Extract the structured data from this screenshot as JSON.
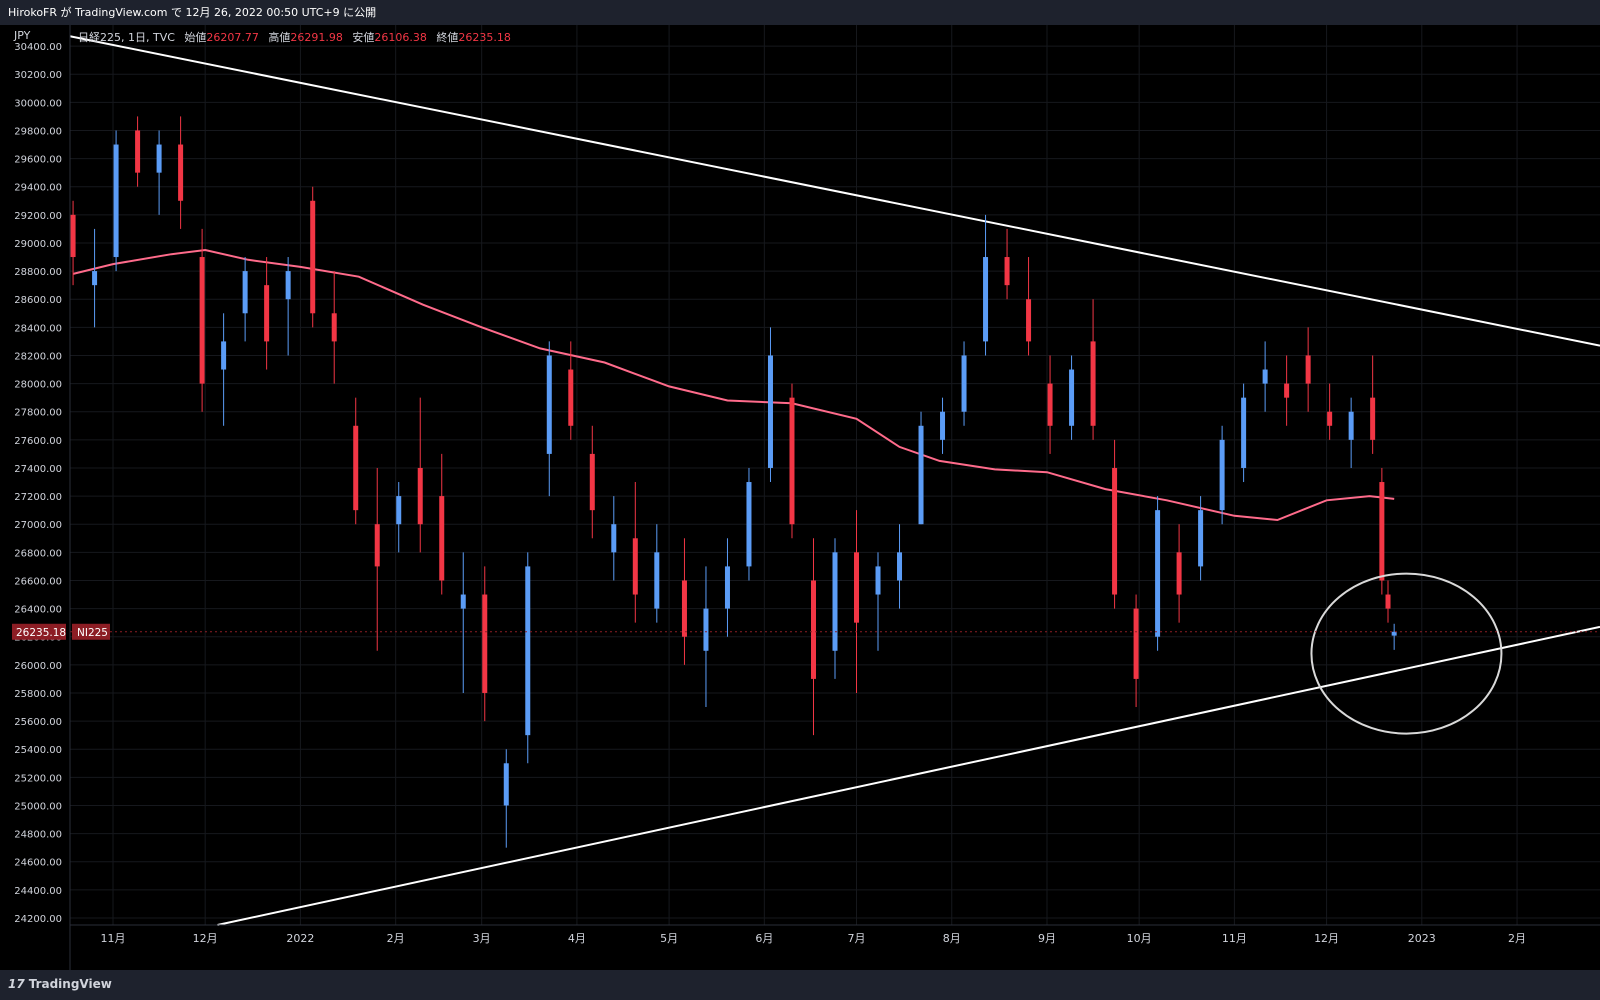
{
  "header": {
    "publish_text": "HirokoFR が TradingView.com で 12月 26, 2022 00:50 UTC+9 に公開"
  },
  "legend": {
    "symbol": "日経225, 1日, TVC",
    "open_label": "始値",
    "open_value": "26207.77",
    "high_label": "高値",
    "high_value": "26291.98",
    "low_label": "安値",
    "low_value": "26106.38",
    "close_label": "終値",
    "close_value": "26235.18"
  },
  "footer": {
    "brand": "TradingView",
    "mark": "17"
  },
  "colors": {
    "up": "#5b9cf6",
    "down": "#f23645",
    "ma": "#ff6b8b",
    "trendline": "#ffffff",
    "price_tag": "#8c1d24"
  },
  "chart_data": {
    "type": "candlestick",
    "currency_label": "JPY",
    "symbol_tag": "NI225",
    "last_price": 26235.18,
    "last_price_label": "26235.18",
    "ylim": [
      24150,
      30550
    ],
    "y_ticks": [
      "24200.00",
      "24400.00",
      "24600.00",
      "24800.00",
      "25000.00",
      "25200.00",
      "25400.00",
      "25600.00",
      "25800.00",
      "26000.00",
      "26200.00",
      "26400.00",
      "26600.00",
      "26800.00",
      "27000.00",
      "27200.00",
      "27400.00",
      "27600.00",
      "27800.00",
      "28000.00",
      "28200.00",
      "28400.00",
      "28600.00",
      "28800.00",
      "29000.00",
      "29200.00",
      "29400.00",
      "29600.00",
      "29800.00",
      "30000.00",
      "30200.00",
      "30400.00"
    ],
    "x_range": [
      "2021-10-18",
      "2023-02-28"
    ],
    "x_ticks": [
      {
        "date": "2021-11-01",
        "label": "11月"
      },
      {
        "date": "2021-12-01",
        "label": "12月"
      },
      {
        "date": "2022-01-01",
        "label": "2022"
      },
      {
        "date": "2022-02-01",
        "label": "2月"
      },
      {
        "date": "2022-03-01",
        "label": "3月"
      },
      {
        "date": "2022-04-01",
        "label": "4月"
      },
      {
        "date": "2022-05-01",
        "label": "5月"
      },
      {
        "date": "2022-06-01",
        "label": "6月"
      },
      {
        "date": "2022-07-01",
        "label": "7月"
      },
      {
        "date": "2022-08-01",
        "label": "8月"
      },
      {
        "date": "2022-09-01",
        "label": "9月"
      },
      {
        "date": "2022-10-01",
        "label": "10月"
      },
      {
        "date": "2022-11-01",
        "label": "11月"
      },
      {
        "date": "2022-12-01",
        "label": "12月"
      },
      {
        "date": "2023-01-01",
        "label": "2023"
      },
      {
        "date": "2023-02-01",
        "label": "2月"
      }
    ],
    "candles": [
      {
        "date": "2021-10-19",
        "open": 29200,
        "high": 29300,
        "low": 28700,
        "close": 28900
      },
      {
        "date": "2021-10-26",
        "open": 28700,
        "high": 29100,
        "low": 28400,
        "close": 28800
      },
      {
        "date": "2021-11-02",
        "open": 28900,
        "high": 29800,
        "low": 28800,
        "close": 29700
      },
      {
        "date": "2021-11-09",
        "open": 29800,
        "high": 29900,
        "low": 29400,
        "close": 29500
      },
      {
        "date": "2021-11-16",
        "open": 29500,
        "high": 29800,
        "low": 29200,
        "close": 29700
      },
      {
        "date": "2021-11-23",
        "open": 29700,
        "high": 29900,
        "low": 29100,
        "close": 29300
      },
      {
        "date": "2021-11-30",
        "open": 28900,
        "high": 29100,
        "low": 27800,
        "close": 28000
      },
      {
        "date": "2021-12-07",
        "open": 28100,
        "high": 28500,
        "low": 27700,
        "close": 28300
      },
      {
        "date": "2021-12-14",
        "open": 28500,
        "high": 28900,
        "low": 28300,
        "close": 28800
      },
      {
        "date": "2021-12-21",
        "open": 28700,
        "high": 28900,
        "low": 28100,
        "close": 28300
      },
      {
        "date": "2021-12-28",
        "open": 28600,
        "high": 28900,
        "low": 28200,
        "close": 28800
      },
      {
        "date": "2022-01-05",
        "open": 29300,
        "high": 29400,
        "low": 28400,
        "close": 28500
      },
      {
        "date": "2022-01-12",
        "open": 28500,
        "high": 28800,
        "low": 28000,
        "close": 28300
      },
      {
        "date": "2022-01-19",
        "open": 27700,
        "high": 27900,
        "low": 27000,
        "close": 27100
      },
      {
        "date": "2022-01-26",
        "open": 27000,
        "high": 27400,
        "low": 26100,
        "close": 26700
      },
      {
        "date": "2022-02-02",
        "open": 27000,
        "high": 27300,
        "low": 26800,
        "close": 27200
      },
      {
        "date": "2022-02-09",
        "open": 27400,
        "high": 27900,
        "low": 26800,
        "close": 27000
      },
      {
        "date": "2022-02-16",
        "open": 27200,
        "high": 27500,
        "low": 26500,
        "close": 26600
      },
      {
        "date": "2022-02-23",
        "open": 26400,
        "high": 26800,
        "low": 25800,
        "close": 26500
      },
      {
        "date": "2022-03-02",
        "open": 26500,
        "high": 26700,
        "low": 25600,
        "close": 25800
      },
      {
        "date": "2022-03-09",
        "open": 25000,
        "high": 25400,
        "low": 24700,
        "close": 25300
      },
      {
        "date": "2022-03-16",
        "open": 25500,
        "high": 26800,
        "low": 25300,
        "close": 26700
      },
      {
        "date": "2022-03-23",
        "open": 27500,
        "high": 28300,
        "low": 27200,
        "close": 28200
      },
      {
        "date": "2022-03-30",
        "open": 28100,
        "high": 28300,
        "low": 27600,
        "close": 27700
      },
      {
        "date": "2022-04-06",
        "open": 27500,
        "high": 27700,
        "low": 26900,
        "close": 27100
      },
      {
        "date": "2022-04-13",
        "open": 26800,
        "high": 27200,
        "low": 26600,
        "close": 27000
      },
      {
        "date": "2022-04-20",
        "open": 26900,
        "high": 27300,
        "low": 26300,
        "close": 26500
      },
      {
        "date": "2022-04-27",
        "open": 26400,
        "high": 27000,
        "low": 26300,
        "close": 26800
      },
      {
        "date": "2022-05-06",
        "open": 26600,
        "high": 26900,
        "low": 26000,
        "close": 26200
      },
      {
        "date": "2022-05-13",
        "open": 26100,
        "high": 26700,
        "low": 25700,
        "close": 26400
      },
      {
        "date": "2022-05-20",
        "open": 26400,
        "high": 26900,
        "low": 26200,
        "close": 26700
      },
      {
        "date": "2022-05-27",
        "open": 26700,
        "high": 27400,
        "low": 26600,
        "close": 27300
      },
      {
        "date": "2022-06-03",
        "open": 27400,
        "high": 28400,
        "low": 27300,
        "close": 28200
      },
      {
        "date": "2022-06-10",
        "open": 27900,
        "high": 28000,
        "low": 26900,
        "close": 27000
      },
      {
        "date": "2022-06-17",
        "open": 26600,
        "high": 26900,
        "low": 25500,
        "close": 25900
      },
      {
        "date": "2022-06-24",
        "open": 26100,
        "high": 26900,
        "low": 25900,
        "close": 26800
      },
      {
        "date": "2022-07-01",
        "open": 26800,
        "high": 27100,
        "low": 25800,
        "close": 26300
      },
      {
        "date": "2022-07-08",
        "open": 26500,
        "high": 26800,
        "low": 26100,
        "close": 26700
      },
      {
        "date": "2022-07-15",
        "open": 26600,
        "high": 27000,
        "low": 26400,
        "close": 26800
      },
      {
        "date": "2022-07-22",
        "open": 27000,
        "high": 27800,
        "low": 27000,
        "close": 27700
      },
      {
        "date": "2022-07-29",
        "open": 27600,
        "high": 27900,
        "low": 27500,
        "close": 27800
      },
      {
        "date": "2022-08-05",
        "open": 27800,
        "high": 28300,
        "low": 27700,
        "close": 28200
      },
      {
        "date": "2022-08-12",
        "open": 28300,
        "high": 29200,
        "low": 28200,
        "close": 28900
      },
      {
        "date": "2022-08-19",
        "open": 28900,
        "high": 29100,
        "low": 28600,
        "close": 28700
      },
      {
        "date": "2022-08-26",
        "open": 28600,
        "high": 28900,
        "low": 28200,
        "close": 28300
      },
      {
        "date": "2022-09-02",
        "open": 28000,
        "high": 28200,
        "low": 27500,
        "close": 27700
      },
      {
        "date": "2022-09-09",
        "open": 27700,
        "high": 28200,
        "low": 27600,
        "close": 28100
      },
      {
        "date": "2022-09-16",
        "open": 28300,
        "high": 28600,
        "low": 27600,
        "close": 27700
      },
      {
        "date": "2022-09-23",
        "open": 27400,
        "high": 27600,
        "low": 26400,
        "close": 26500
      },
      {
        "date": "2022-09-30",
        "open": 26400,
        "high": 26500,
        "low": 25700,
        "close": 25900
      },
      {
        "date": "2022-10-07",
        "open": 26200,
        "high": 27200,
        "low": 26100,
        "close": 27100
      },
      {
        "date": "2022-10-14",
        "open": 26800,
        "high": 27000,
        "low": 26300,
        "close": 26500
      },
      {
        "date": "2022-10-21",
        "open": 26700,
        "high": 27200,
        "low": 26600,
        "close": 27100
      },
      {
        "date": "2022-10-28",
        "open": 27100,
        "high": 27700,
        "low": 27000,
        "close": 27600
      },
      {
        "date": "2022-11-04",
        "open": 27400,
        "high": 28000,
        "low": 27300,
        "close": 27900
      },
      {
        "date": "2022-11-11",
        "open": 28000,
        "high": 28300,
        "low": 27800,
        "close": 28100
      },
      {
        "date": "2022-11-18",
        "open": 28000,
        "high": 28200,
        "low": 27700,
        "close": 27900
      },
      {
        "date": "2022-11-25",
        "open": 28200,
        "high": 28400,
        "low": 27800,
        "close": 28000
      },
      {
        "date": "2022-12-02",
        "open": 27800,
        "high": 28000,
        "low": 27600,
        "close": 27700
      },
      {
        "date": "2022-12-09",
        "open": 27600,
        "high": 27900,
        "low": 27400,
        "close": 27800
      },
      {
        "date": "2022-12-16",
        "open": 27900,
        "high": 28200,
        "low": 27500,
        "close": 27600
      },
      {
        "date": "2022-12-19",
        "open": 27300,
        "high": 27400,
        "low": 26500,
        "close": 26600
      },
      {
        "date": "2022-12-21",
        "open": 26500,
        "high": 26600,
        "low": 26300,
        "close": 26400
      },
      {
        "date": "2022-12-23",
        "open": 26207.77,
        "high": 26291.98,
        "low": 26106.38,
        "close": 26235.18
      }
    ],
    "moving_average": [
      {
        "date": "2021-10-19",
        "value": 28780
      },
      {
        "date": "2021-11-01",
        "value": 28850
      },
      {
        "date": "2021-11-20",
        "value": 28920
      },
      {
        "date": "2021-12-01",
        "value": 28950
      },
      {
        "date": "2021-12-15",
        "value": 28880
      },
      {
        "date": "2022-01-01",
        "value": 28830
      },
      {
        "date": "2022-01-20",
        "value": 28760
      },
      {
        "date": "2022-02-10",
        "value": 28560
      },
      {
        "date": "2022-03-01",
        "value": 28400
      },
      {
        "date": "2022-03-20",
        "value": 28250
      },
      {
        "date": "2022-04-10",
        "value": 28150
      },
      {
        "date": "2022-05-01",
        "value": 27980
      },
      {
        "date": "2022-05-20",
        "value": 27880
      },
      {
        "date": "2022-06-10",
        "value": 27860
      },
      {
        "date": "2022-07-01",
        "value": 27750
      },
      {
        "date": "2022-07-15",
        "value": 27550
      },
      {
        "date": "2022-07-28",
        "value": 27450
      },
      {
        "date": "2022-08-15",
        "value": 27390
      },
      {
        "date": "2022-09-01",
        "value": 27370
      },
      {
        "date": "2022-09-20",
        "value": 27250
      },
      {
        "date": "2022-10-10",
        "value": 27170
      },
      {
        "date": "2022-11-01",
        "value": 27060
      },
      {
        "date": "2022-11-15",
        "value": 27030
      },
      {
        "date": "2022-12-01",
        "value": 27170
      },
      {
        "date": "2022-12-15",
        "value": 27200
      },
      {
        "date": "2022-12-23",
        "value": 27180
      }
    ],
    "trendlines": [
      {
        "start": {
          "date": "2021-10-18",
          "value": 30470
        },
        "end": {
          "date": "2023-02-28",
          "value": 28270
        }
      },
      {
        "start": {
          "date": "2021-12-05",
          "value": 24150
        },
        "end": {
          "date": "2023-02-28",
          "value": 26270
        }
      }
    ],
    "highlight": {
      "type": "ellipse",
      "center": {
        "date": "2022-12-27",
        "value": 26080
      }
    },
    "grid": true
  }
}
